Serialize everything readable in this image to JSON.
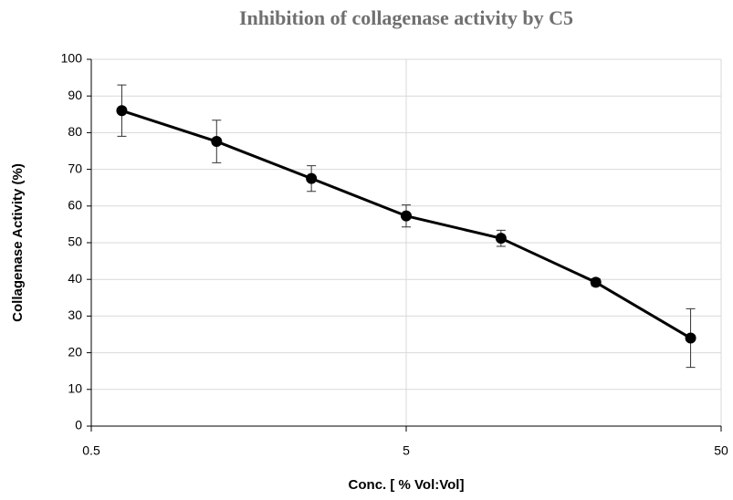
{
  "chart_data": {
    "type": "line",
    "title": "Inhibition of collagenase activity by C5",
    "xlabel": "Conc. [ % Vol:Vol]",
    "ylabel": "Collagenase Activity (%)",
    "x": [
      0.625,
      1.25,
      2.5,
      5,
      10,
      20,
      40
    ],
    "series": [
      {
        "name": "C5",
        "color": "#000000",
        "values": [
          86,
          77.6,
          67.5,
          57.3,
          51.2,
          39.2,
          24
        ],
        "errors": [
          7,
          5.8,
          3.5,
          3,
          2.2,
          1,
          8
        ]
      }
    ],
    "xscale": "log",
    "xlim": [
      0.5,
      50
    ],
    "xticks": [
      0.5,
      5,
      50
    ],
    "ylim": [
      0,
      100
    ],
    "yticks": [
      0,
      10,
      20,
      30,
      40,
      50,
      60,
      70,
      80,
      90,
      100
    ],
    "grid": true,
    "legend": false
  }
}
